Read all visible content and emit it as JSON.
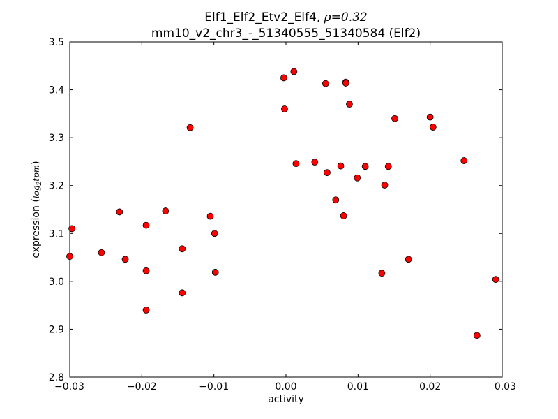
{
  "chart_data": {
    "type": "scatter",
    "title": {
      "line1_prefix": "Elf1_Elf2_Etv2_Elf4, ",
      "line1_rho_symbol": "ρ",
      "line1_rho_value": "=0.32",
      "line2": "mm10_v2_chr3_-_51340555_51340584 (Elf2)"
    },
    "xlabel": "activity",
    "ylabel_prefix": "expression (",
    "ylabel_math_base": "log",
    "ylabel_math_sub": "2",
    "ylabel_math_rest": "tpm",
    "ylabel_suffix": ")",
    "xlim": [
      -0.03,
      0.03
    ],
    "ylim": [
      2.8,
      3.5
    ],
    "xticks": [
      -0.03,
      -0.02,
      -0.01,
      0.0,
      0.01,
      0.02,
      0.03
    ],
    "xtick_labels": [
      "−0.03",
      "−0.02",
      "−0.01",
      "0.00",
      "0.01",
      "0.02",
      "0.03"
    ],
    "yticks": [
      2.8,
      2.9,
      3.0,
      3.1,
      3.2,
      3.3,
      3.4,
      3.5
    ],
    "ytick_labels": [
      "2.8",
      "2.9",
      "3.0",
      "3.1",
      "3.2",
      "3.3",
      "3.4",
      "3.5"
    ],
    "grid": false,
    "legend": "none",
    "marker_color": "#ff0000",
    "points": [
      {
        "x": -0.0297,
        "y": 3.11
      },
      {
        "x": -0.03,
        "y": 3.052
      },
      {
        "x": -0.0256,
        "y": 3.06
      },
      {
        "x": -0.0231,
        "y": 3.145
      },
      {
        "x": -0.0223,
        "y": 3.046
      },
      {
        "x": -0.0194,
        "y": 3.117
      },
      {
        "x": -0.0194,
        "y": 3.022
      },
      {
        "x": -0.0194,
        "y": 2.94
      },
      {
        "x": -0.0167,
        "y": 3.147
      },
      {
        "x": -0.0144,
        "y": 3.068
      },
      {
        "x": -0.0144,
        "y": 2.976
      },
      {
        "x": -0.0133,
        "y": 3.321
      },
      {
        "x": -0.0105,
        "y": 3.136
      },
      {
        "x": -0.0099,
        "y": 3.1
      },
      {
        "x": -0.0098,
        "y": 3.019
      },
      {
        "x": -0.0003,
        "y": 3.425
      },
      {
        "x": -0.0002,
        "y": 3.36
      },
      {
        "x": 0.0011,
        "y": 3.438
      },
      {
        "x": 0.0014,
        "y": 3.246
      },
      {
        "x": 0.004,
        "y": 3.249
      },
      {
        "x": 0.0055,
        "y": 3.413
      },
      {
        "x": 0.0057,
        "y": 3.227
      },
      {
        "x": 0.0069,
        "y": 3.17
      },
      {
        "x": 0.0076,
        "y": 3.241
      },
      {
        "x": 0.008,
        "y": 3.137
      },
      {
        "x": 0.0083,
        "y": 3.416
      },
      {
        "x": 0.0083,
        "y": 3.414
      },
      {
        "x": 0.0088,
        "y": 3.37
      },
      {
        "x": 0.0099,
        "y": 3.216
      },
      {
        "x": 0.011,
        "y": 3.24
      },
      {
        "x": 0.0133,
        "y": 3.017
      },
      {
        "x": 0.0137,
        "y": 3.201
      },
      {
        "x": 0.0142,
        "y": 3.24
      },
      {
        "x": 0.0151,
        "y": 3.34
      },
      {
        "x": 0.017,
        "y": 3.046
      },
      {
        "x": 0.02,
        "y": 3.343
      },
      {
        "x": 0.0204,
        "y": 3.322
      },
      {
        "x": 0.0247,
        "y": 3.252
      },
      {
        "x": 0.0265,
        "y": 2.887
      },
      {
        "x": 0.0291,
        "y": 3.004
      }
    ]
  }
}
